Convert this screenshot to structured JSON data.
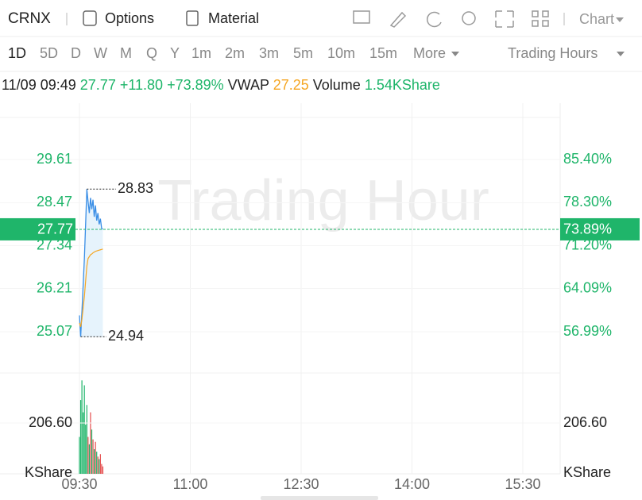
{
  "toolbar": {
    "symbol": "CRNX",
    "options": "Options",
    "material": "Material",
    "chart": "Chart"
  },
  "tabs": [
    "1D",
    "5D",
    "D",
    "W",
    "M",
    "Q",
    "Y",
    "1m",
    "2m",
    "3m",
    "5m",
    "10m",
    "15m"
  ],
  "more": "More",
  "trading_hours": "Trading Hours",
  "quote": {
    "time": "11/09 09:49",
    "price": "27.77",
    "change": "+11.80",
    "change_pct": "+73.89%",
    "vwap_label": "VWAP",
    "vwap": "27.25",
    "volume_label": "Volume",
    "volume": "1.54KShare"
  },
  "watermark": "Trading Hour",
  "chart": {
    "price_ticks": [
      29.61,
      28.47,
      27.34,
      26.21,
      25.07
    ],
    "pct_ticks": [
      "85.40%",
      "78.30%",
      "71.20%",
      "64.09%",
      "56.99%"
    ],
    "current_price": 27.77,
    "current_pct": "73.89%",
    "high": 28.83,
    "low": 24.94,
    "price": [
      25.5,
      24.94,
      25.6,
      26.3,
      27.0,
      27.9,
      28.83,
      28.5,
      28.2,
      28.6,
      28.3,
      28.55,
      28.1,
      28.4,
      28.0,
      28.2,
      27.9,
      28.05,
      27.8,
      27.77
    ],
    "vwap": [
      25.3,
      25.2,
      25.4,
      25.7,
      26.0,
      26.4,
      26.8,
      27.0,
      27.05,
      27.1,
      27.12,
      27.15,
      27.17,
      27.19,
      27.2,
      27.21,
      27.22,
      27.23,
      27.24,
      27.25
    ],
    "volume": [
      150,
      300,
      380,
      250,
      360,
      200,
      280,
      150,
      120,
      250,
      180,
      140,
      100,
      130,
      90,
      70,
      60,
      80,
      40,
      30
    ],
    "volume_colors": [
      "#1fb56a",
      "#1fb56a",
      "#1fb56a",
      "#1fb56a",
      "#1fb56a",
      "#1fb56a",
      "#1fb56a",
      "#e54d4d",
      "#1fb56a",
      "#e54d4d",
      "#1fb56a",
      "#e54d4d",
      "#1fb56a",
      "#e54d4d",
      "#1fb56a",
      "#e54d4d",
      "#1fb56a",
      "#e54d4d",
      "#e54d4d",
      "#e54d4d"
    ],
    "volume_tick": {
      "value": 206.6,
      "label": "206.60"
    },
    "volume_unit": "KShare",
    "time_ticks": [
      "09:30",
      "11:00",
      "12:30",
      "14:00",
      "15:30"
    ]
  }
}
